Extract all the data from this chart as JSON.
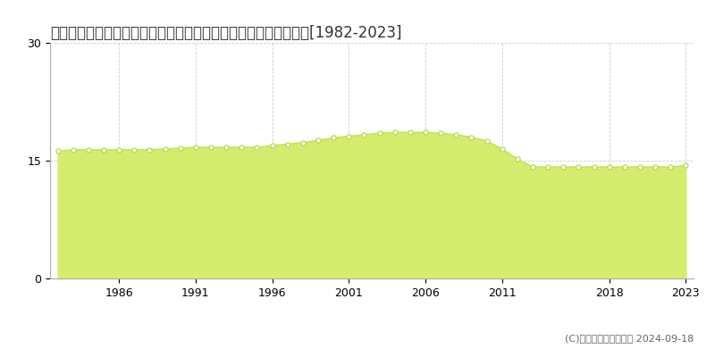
{
  "title": "青森県八戸市大字尻内町字表河原１５番１　公示地価　地価推移[1982-2023]",
  "years": [
    1982,
    1983,
    1984,
    1985,
    1986,
    1987,
    1988,
    1989,
    1990,
    1991,
    1992,
    1993,
    1994,
    1995,
    1996,
    1997,
    1998,
    1999,
    2000,
    2001,
    2002,
    2003,
    2004,
    2005,
    2006,
    2007,
    2008,
    2009,
    2010,
    2011,
    2012,
    2013,
    2014,
    2015,
    2016,
    2017,
    2018,
    2019,
    2020,
    2021,
    2022,
    2023
  ],
  "values": [
    16.2,
    16.4,
    16.4,
    16.4,
    16.4,
    16.4,
    16.4,
    16.5,
    16.6,
    16.7,
    16.7,
    16.7,
    16.7,
    16.7,
    16.9,
    17.1,
    17.3,
    17.6,
    17.9,
    18.1,
    18.3,
    18.5,
    18.6,
    18.6,
    18.6,
    18.5,
    18.3,
    18.0,
    17.5,
    16.5,
    15.2,
    14.2,
    14.2,
    14.2,
    14.2,
    14.2,
    14.2,
    14.2,
    14.2,
    14.2,
    14.2,
    14.4
  ],
  "ylim": [
    0,
    30
  ],
  "yticks": [
    0,
    15,
    30
  ],
  "xticks": [
    1986,
    1991,
    1996,
    2001,
    2006,
    2011,
    2018,
    2023
  ],
  "fill_color": "#d4ed6e",
  "line_color": "#c8e050",
  "marker_facecolor": "#ffffff",
  "marker_edgecolor": "#b8d040",
  "grid_color": "#cccccc",
  "background_color": "#ffffff",
  "legend_color": "#c8e050",
  "copyright_text": "(C)土地価格ドットコム 2024-09-18",
  "title_fontsize": 12,
  "tick_fontsize": 9,
  "legend_fontsize": 9,
  "xmin": 1982,
  "xmax": 2023
}
